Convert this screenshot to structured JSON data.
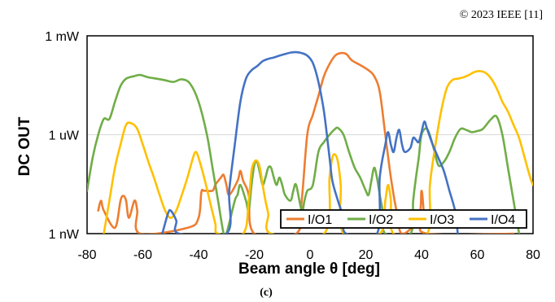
{
  "copyright": "© 2023 IEEE [11]",
  "panel_label": "(c)",
  "chart_data": {
    "type": "line",
    "title": "",
    "xlabel": "Beam angle θ [deg]",
    "ylabel": "DC OUT",
    "xlim": [
      -80,
      80
    ],
    "ylim_log10_watts": [
      -9,
      -3
    ],
    "y_scale": "log",
    "x_ticks": [
      -80,
      -60,
      -40,
      -20,
      0,
      20,
      40,
      60,
      80
    ],
    "y_ticks": [
      {
        "value_w": 0.001,
        "label": "1 mW"
      },
      {
        "value_w": 1e-06,
        "label": "1 uW"
      },
      {
        "value_w": 1e-09,
        "label": "1 nW"
      }
    ],
    "grid": "horizontal at y ticks",
    "legend_placement": "bottom-right",
    "series": [
      {
        "name": "I/O1",
        "color": "#ED7D31",
        "points": [
          [
            -76,
            "5e-9"
          ],
          [
            -75,
            "1e-8"
          ],
          [
            -74,
            "5e-9"
          ],
          [
            -70,
            "1.5e-9"
          ],
          [
            -68,
            "1e-8"
          ],
          [
            -67,
            "1.4e-8"
          ],
          [
            -66,
            "1e-8"
          ],
          [
            -65,
            "3e-9"
          ],
          [
            -63,
            "1e-8"
          ],
          [
            -62,
            "5e-9"
          ],
          [
            -61,
            "1e-9"
          ],
          [
            -44,
            "1.5e-9"
          ],
          [
            -40,
            "3e-9"
          ],
          [
            -39,
            "1.8e-8"
          ],
          [
            -38,
            "2e-8"
          ],
          [
            -35,
            "2e-8"
          ],
          [
            -34,
            "3e-8"
          ],
          [
            -32,
            "5e-8"
          ],
          [
            -31,
            "6e-8"
          ],
          [
            -30,
            "3e-8"
          ],
          [
            -29,
            "1.5e-8"
          ],
          [
            -26,
            "4e-8"
          ],
          [
            -25,
            "8e-8"
          ],
          [
            -24,
            "4e-8"
          ],
          [
            -22,
            "1.5e-8"
          ],
          [
            -20,
            "1e-9"
          ],
          [
            -5,
            "1e-9"
          ],
          [
            -3,
            "1e-8"
          ],
          [
            -1,
            "1e-6"
          ],
          [
            1,
            "4e-6"
          ],
          [
            3,
            "1.5e-5"
          ],
          [
            5,
            "6e-5"
          ],
          [
            7,
            "1.4e-4"
          ],
          [
            9,
            "2.5e-4"
          ],
          [
            11,
            "3e-4"
          ],
          [
            13,
            "2.8e-4"
          ],
          [
            15,
            "1.8e-4"
          ],
          [
            18,
            "1.3e-4"
          ],
          [
            21,
            "9e-5"
          ],
          [
            23,
            "6e-5"
          ],
          [
            25,
            "2e-5"
          ],
          [
            27,
            "1e-6"
          ],
          [
            29,
            "5e-8"
          ],
          [
            31,
            "5e-9"
          ],
          [
            33,
            "1e-9"
          ],
          [
            39,
            "3e-9"
          ],
          [
            40,
            "2e-8"
          ],
          [
            41,
            "3e-9"
          ],
          [
            42,
            "1e-9"
          ],
          [
            73,
            "1e-9"
          ]
        ]
      },
      {
        "name": "I/O2",
        "color": "#70AD47",
        "points": [
          [
            -80,
            "2e-8"
          ],
          [
            -78,
            "2e-7"
          ],
          [
            -76,
            "1e-6"
          ],
          [
            -74,
            "3e-6"
          ],
          [
            -72,
            "3e-6"
          ],
          [
            -70,
            "1e-5"
          ],
          [
            -68,
            "3e-5"
          ],
          [
            -66,
            "5e-5"
          ],
          [
            -63,
            "6e-5"
          ],
          [
            -61,
            "6.5e-5"
          ],
          [
            -58,
            "5.5e-5"
          ],
          [
            -55,
            "5e-5"
          ],
          [
            -52,
            "4.5e-5"
          ],
          [
            -49,
            "4e-5"
          ],
          [
            -46,
            "4.8e-5"
          ],
          [
            -43,
            "3.5e-5"
          ],
          [
            -40,
            "1e-5"
          ],
          [
            -37,
            "1e-6"
          ],
          [
            -35,
            "1e-7"
          ],
          [
            -33,
            "1e-8"
          ],
          [
            -31,
            "1e-9"
          ],
          [
            -30,
            "1e-9"
          ],
          [
            -27,
            "1e-8"
          ],
          [
            -26,
            "1.5e-8"
          ],
          [
            -25,
            "3e-8"
          ],
          [
            -23,
            "1e-8"
          ],
          [
            -22,
            "5e-9"
          ],
          [
            -21,
            "3e-8"
          ],
          [
            -20,
            "1.2e-7"
          ],
          [
            -19,
            "1.5e-7"
          ],
          [
            -18,
            "7e-8"
          ],
          [
            -17,
            "3e-8"
          ],
          [
            -16,
            "5e-8"
          ],
          [
            -15,
            "1e-7"
          ],
          [
            -14,
            "1e-7"
          ],
          [
            -13,
            "5e-8"
          ],
          [
            -12,
            "3e-8"
          ],
          [
            -11,
            "5e-8"
          ],
          [
            -10,
            "3e-8"
          ],
          [
            -9,
            "1.5e-8"
          ],
          [
            -7,
            "1e-8"
          ],
          [
            -6,
            "2e-8"
          ],
          [
            -5,
            "3e-8"
          ],
          [
            -3,
            "5e-9"
          ],
          [
            -2,
            "1e-8"
          ],
          [
            -1,
            "2e-8"
          ],
          [
            1,
            "3e-8"
          ],
          [
            3,
            "3e-7"
          ],
          [
            5,
            "6e-7"
          ],
          [
            7,
            "1e-6"
          ],
          [
            9,
            "1.5e-6"
          ],
          [
            10,
            "1.6e-6"
          ],
          [
            12,
            "1e-6"
          ],
          [
            14,
            "3e-7"
          ],
          [
            16,
            "1e-7"
          ],
          [
            18,
            "5e-8"
          ],
          [
            20,
            "2e-8"
          ],
          [
            21,
            "1.5e-8"
          ],
          [
            22,
            "4e-8"
          ],
          [
            23,
            "1e-7"
          ],
          [
            24,
            "5e-8"
          ],
          [
            25,
            "1.5e-8"
          ],
          [
            26,
            "5e-9"
          ],
          [
            27,
            "1e-9"
          ],
          [
            36,
            "1e-9"
          ],
          [
            37,
            "1e-8"
          ],
          [
            38,
            "5e-8"
          ],
          [
            39,
            "2e-7"
          ],
          [
            40,
            "1e-6"
          ],
          [
            42,
            "1.5e-6"
          ],
          [
            44,
            "5e-7"
          ],
          [
            46,
            "1.2e-7"
          ],
          [
            48,
            "1.5e-7"
          ],
          [
            50,
            "3e-7"
          ],
          [
            52,
            "8e-7"
          ],
          [
            54,
            "1.5e-6"
          ],
          [
            56,
            "1.4e-6"
          ],
          [
            58,
            "1.2e-6"
          ],
          [
            60,
            "1.3e-6"
          ],
          [
            62,
            "1.5e-6"
          ],
          [
            65,
            "3e-6"
          ],
          [
            67,
            "3.5e-6"
          ],
          [
            69,
            "1e-6"
          ],
          [
            71,
            "1e-7"
          ],
          [
            73,
            "1e-8"
          ],
          [
            75,
            "1e-9"
          ]
        ]
      },
      {
        "name": "I/O3",
        "color": "#FFC000",
        "points": [
          [
            -74,
            "1e-9"
          ],
          [
            -72,
            "1e-8"
          ],
          [
            -70,
            "1e-7"
          ],
          [
            -68,
            "5e-7"
          ],
          [
            -66,
            "2e-6"
          ],
          [
            -64,
            "2.2e-6"
          ],
          [
            -62,
            "1.5e-6"
          ],
          [
            -60,
            "5e-7"
          ],
          [
            -58,
            "1.5e-7"
          ],
          [
            -56,
            "5e-8"
          ],
          [
            -54,
            "1.5e-8"
          ],
          [
            -52,
            "5e-9"
          ],
          [
            -50,
            "3e-9"
          ],
          [
            -48,
            "5e-9"
          ],
          [
            -46,
            "1.5e-8"
          ],
          [
            -44,
            "5e-8"
          ],
          [
            -42,
            "2e-7"
          ],
          [
            -41,
            "3e-7"
          ],
          [
            -40,
            "2e-7"
          ],
          [
            -38,
            "5e-8"
          ],
          [
            -36,
            "1e-8"
          ],
          [
            -34,
            "2e-9"
          ],
          [
            -33,
            "1e-9"
          ],
          [
            -24,
            "1e-9"
          ],
          [
            -22,
            "1e-8"
          ],
          [
            -21,
            "8e-8"
          ],
          [
            -20,
            "1.5e-7"
          ],
          [
            -19,
            "1.6e-7"
          ],
          [
            -18,
            "1e-7"
          ],
          [
            -17,
            "3e-8"
          ],
          [
            -16,
            "1e-8"
          ],
          [
            -15,
            "4e-9"
          ],
          [
            -14,
            "1e-9"
          ],
          [
            5,
            "1e-9"
          ],
          [
            7,
            "5e-8"
          ],
          [
            8,
            "2e-7"
          ],
          [
            9,
            "2.5e-7"
          ],
          [
            10,
            "1.5e-7"
          ],
          [
            11,
            "3e-8"
          ],
          [
            12,
            "1e-9"
          ],
          [
            25,
            "1e-9"
          ],
          [
            27,
            "1e-8"
          ],
          [
            28,
            "3e-8"
          ],
          [
            29,
            "1e-8"
          ],
          [
            30,
            "1e-9"
          ],
          [
            42,
            "1e-9"
          ],
          [
            43,
            "3e-8"
          ],
          [
            45,
            "5e-7"
          ],
          [
            47,
            "5e-6"
          ],
          [
            49,
            "2.5e-5"
          ],
          [
            51,
            "4.5e-5"
          ],
          [
            53,
            "5e-5"
          ],
          [
            55,
            "5.5e-5"
          ],
          [
            57,
            "6.5e-5"
          ],
          [
            59,
            "8e-5"
          ],
          [
            61,
            "8.5e-5"
          ],
          [
            63,
            "7.5e-5"
          ],
          [
            65,
            "5e-5"
          ],
          [
            67,
            "2.5e-5"
          ],
          [
            69,
            "1e-5"
          ],
          [
            71,
            "5e-6"
          ],
          [
            73,
            "2e-6"
          ],
          [
            75,
            "8e-7"
          ],
          [
            77,
            "2e-7"
          ],
          [
            79,
            "5e-8"
          ],
          [
            80,
            "3e-8"
          ]
        ]
      },
      {
        "name": "I/O4",
        "color": "#4472C4",
        "points": [
          [
            -53,
            "1e-9"
          ],
          [
            -51,
            "4e-9"
          ],
          [
            -50,
            "5e-9"
          ],
          [
            -48,
            "2.5e-9"
          ],
          [
            -47,
            "1e-9"
          ],
          [
            -30,
            "1e-9"
          ],
          [
            -29,
            "2e-8"
          ],
          [
            -27,
            "5e-7"
          ],
          [
            -25,
            "1e-5"
          ],
          [
            -23,
            "5e-5"
          ],
          [
            -21,
            "9e-5"
          ],
          [
            -19,
            "1.2e-4"
          ],
          [
            -17,
            "1.7e-4"
          ],
          [
            -15,
            "2e-4"
          ],
          [
            -13,
            "2.2e-4"
          ],
          [
            -11,
            "2.5e-4"
          ],
          [
            -9,
            "2.8e-4"
          ],
          [
            -7,
            "3.1e-4"
          ],
          [
            -5,
            "3.2e-4"
          ],
          [
            -3,
            "3e-4"
          ],
          [
            -1,
            "2.5e-4"
          ],
          [
            1,
            "1.5e-4"
          ],
          [
            3,
            "4e-5"
          ],
          [
            5,
            "5e-6"
          ],
          [
            7,
            "2e-7"
          ],
          [
            8,
            "4e-8"
          ],
          [
            10,
            "1e-8"
          ],
          [
            12,
            "3e-9"
          ],
          [
            13,
            "1e-9"
          ],
          [
            24,
            "1e-9"
          ],
          [
            25,
            "5e-8"
          ],
          [
            27,
            "5e-7"
          ],
          [
            28,
            "1.2e-6"
          ],
          [
            29,
            "5e-7"
          ],
          [
            30,
            "3e-7"
          ],
          [
            31,
            "8e-7"
          ],
          [
            32,
            "1.4e-6"
          ],
          [
            33,
            "5e-7"
          ],
          [
            34,
            "3e-7"
          ],
          [
            36,
            "4e-7"
          ],
          [
            37,
            "8e-7"
          ],
          [
            38,
            "7e-7"
          ],
          [
            39,
            "6e-7"
          ],
          [
            40,
            "1.2e-6"
          ],
          [
            41,
            "2.5e-6"
          ],
          [
            42,
            "1.5e-6"
          ],
          [
            44,
            "5e-7"
          ],
          [
            46,
            "2e-7"
          ],
          [
            48,
            "8e-8"
          ],
          [
            50,
            "2e-8"
          ],
          [
            52,
            "5e-9"
          ],
          [
            53,
            "1e-9"
          ]
        ]
      }
    ]
  }
}
